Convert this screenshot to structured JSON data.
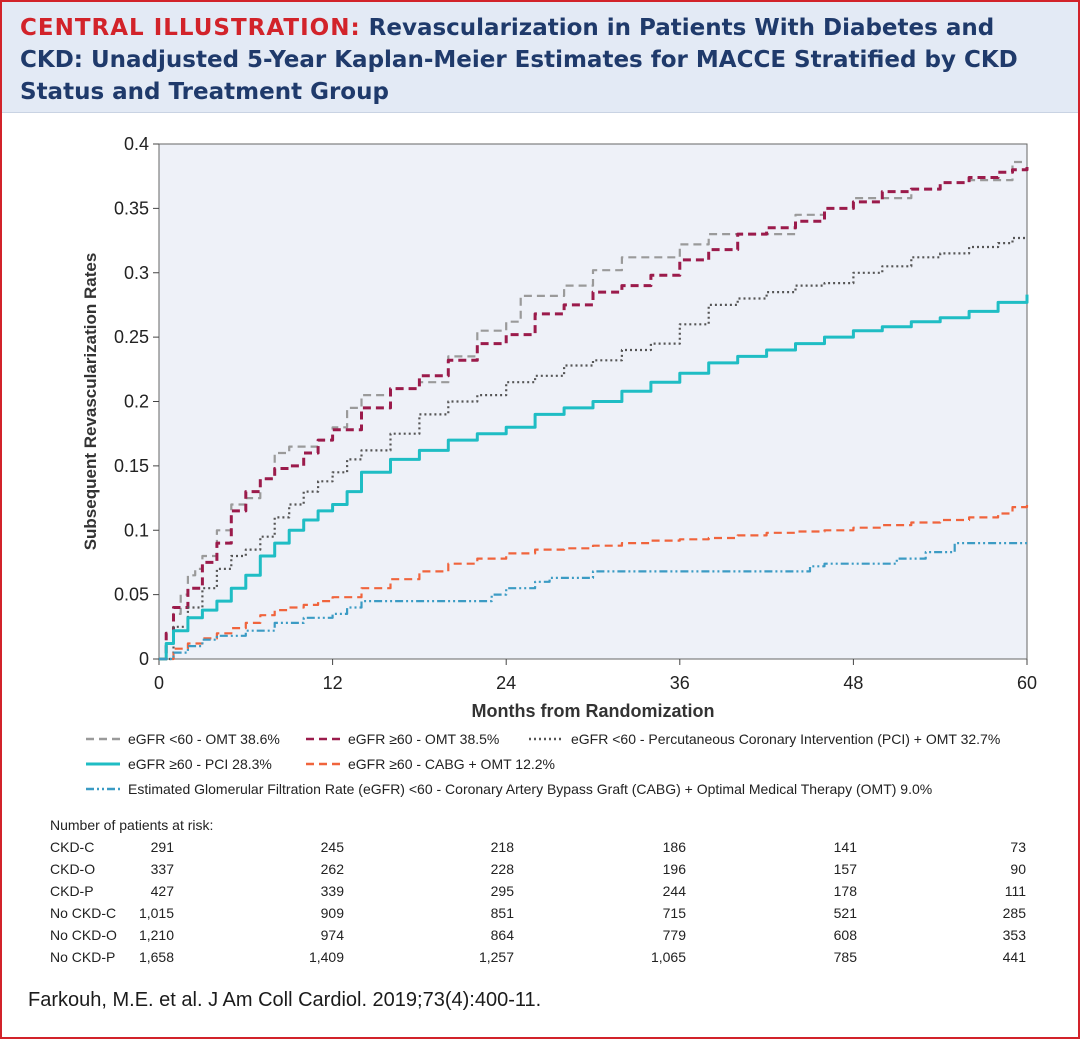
{
  "header": {
    "lead": "CENTRAL ILLUSTRATION:",
    "title": "Revascularization in Patients With Diabetes and CKD: Unadjusted 5-Year Kaplan-Meier Estimates for MACCE Stratified by CKD Status and Treatment Group"
  },
  "chart_data": {
    "type": "line",
    "xlabel": "Months from Randomization",
    "ylabel": "Subsequent Revascularization Rates",
    "xlim": [
      0,
      60
    ],
    "ylim": [
      0,
      0.4
    ],
    "xticks": [
      "0",
      "12",
      "24",
      "36",
      "48",
      "60"
    ],
    "yticks": [
      "0",
      "0.05",
      "0.1",
      "0.15",
      "0.2",
      "0.25",
      "0.3",
      "0.35",
      "0.4"
    ],
    "plot_background": "#eef1f8",
    "grid": false,
    "legend_position": "below",
    "series": [
      {
        "name": "eGFR <60 - OMT 38.6%",
        "color": "#9a9a9a",
        "dash": "dashed",
        "x": [
          0,
          0.5,
          1,
          1.5,
          2,
          2.5,
          3,
          4,
          5,
          6,
          7,
          8,
          9,
          10,
          11,
          12,
          13,
          14,
          16,
          18,
          20,
          22,
          24,
          25,
          26,
          28,
          30,
          32,
          34,
          36,
          38,
          40,
          42,
          44,
          46,
          48,
          50,
          52,
          54,
          56,
          58,
          59,
          60
        ],
        "y": [
          0,
          0.02,
          0.035,
          0.05,
          0.065,
          0.07,
          0.08,
          0.1,
          0.12,
          0.125,
          0.14,
          0.16,
          0.165,
          0.165,
          0.17,
          0.18,
          0.195,
          0.205,
          0.21,
          0.215,
          0.235,
          0.255,
          0.262,
          0.282,
          0.282,
          0.29,
          0.302,
          0.312,
          0.312,
          0.322,
          0.33,
          0.33,
          0.33,
          0.345,
          0.35,
          0.358,
          0.358,
          0.365,
          0.37,
          0.372,
          0.372,
          0.386,
          0.386
        ]
      },
      {
        "name": "eGFR ≥60 - OMT 38.5%",
        "color": "#9b1b4b",
        "dash": "dashed",
        "x": [
          0,
          0.5,
          1,
          2,
          3,
          4,
          5,
          6,
          7,
          8,
          9,
          10,
          11,
          12,
          14,
          16,
          18,
          20,
          22,
          24,
          26,
          28,
          30,
          32,
          34,
          36,
          38,
          40,
          42,
          44,
          46,
          48,
          50,
          52,
          54,
          56,
          58,
          59,
          60
        ],
        "y": [
          0,
          0.02,
          0.04,
          0.055,
          0.075,
          0.09,
          0.115,
          0.13,
          0.14,
          0.148,
          0.15,
          0.16,
          0.17,
          0.178,
          0.195,
          0.21,
          0.22,
          0.232,
          0.245,
          0.252,
          0.268,
          0.275,
          0.285,
          0.29,
          0.298,
          0.31,
          0.318,
          0.33,
          0.335,
          0.34,
          0.35,
          0.355,
          0.363,
          0.365,
          0.37,
          0.374,
          0.378,
          0.38,
          0.385
        ]
      },
      {
        "name": "eGFR <60 - Percutaneous Coronary Intervention (PCI) + OMT 32.7%",
        "color": "#555555",
        "dash": "dotted",
        "x": [
          0,
          1,
          2,
          3,
          4,
          5,
          6,
          7,
          8,
          9,
          10,
          11,
          12,
          13,
          14,
          16,
          18,
          20,
          22,
          24,
          26,
          28,
          30,
          32,
          34,
          36,
          38,
          40,
          42,
          44,
          46,
          48,
          50,
          52,
          54,
          56,
          58,
          59,
          60
        ],
        "y": [
          0,
          0.025,
          0.04,
          0.055,
          0.07,
          0.08,
          0.085,
          0.095,
          0.11,
          0.12,
          0.13,
          0.138,
          0.145,
          0.155,
          0.162,
          0.175,
          0.19,
          0.2,
          0.205,
          0.215,
          0.22,
          0.228,
          0.232,
          0.24,
          0.245,
          0.26,
          0.275,
          0.28,
          0.285,
          0.29,
          0.292,
          0.3,
          0.305,
          0.312,
          0.315,
          0.32,
          0.323,
          0.327,
          0.327
        ]
      },
      {
        "name": "eGFR ≥60 - PCI 28.3%",
        "color": "#1fbdc4",
        "dash": "solid",
        "x": [
          0,
          0.5,
          1,
          2,
          3,
          4,
          5,
          6,
          7,
          8,
          9,
          10,
          11,
          12,
          13,
          14,
          16,
          18,
          20,
          22,
          24,
          26,
          28,
          30,
          32,
          34,
          36,
          38,
          40,
          42,
          44,
          46,
          48,
          50,
          52,
          54,
          56,
          58,
          60
        ],
        "y": [
          0,
          0.012,
          0.022,
          0.032,
          0.038,
          0.045,
          0.055,
          0.065,
          0.08,
          0.09,
          0.1,
          0.108,
          0.115,
          0.12,
          0.13,
          0.145,
          0.155,
          0.162,
          0.17,
          0.175,
          0.18,
          0.19,
          0.195,
          0.2,
          0.208,
          0.215,
          0.222,
          0.23,
          0.235,
          0.24,
          0.245,
          0.25,
          0.255,
          0.258,
          0.262,
          0.265,
          0.27,
          0.277,
          0.283
        ]
      },
      {
        "name": "eGFR ≥60 - CABG + OMT 12.2%",
        "color": "#f0643c",
        "dash": "dashed",
        "x": [
          0,
          1,
          2,
          3,
          4,
          5,
          6,
          7,
          8,
          9,
          10,
          11,
          12,
          14,
          16,
          18,
          20,
          22,
          24,
          26,
          28,
          30,
          32,
          34,
          36,
          38,
          40,
          42,
          44,
          46,
          48,
          50,
          52,
          54,
          56,
          58,
          59,
          60
        ],
        "y": [
          0,
          0.008,
          0.012,
          0.016,
          0.02,
          0.024,
          0.028,
          0.034,
          0.038,
          0.04,
          0.042,
          0.045,
          0.048,
          0.055,
          0.062,
          0.068,
          0.074,
          0.078,
          0.082,
          0.085,
          0.086,
          0.088,
          0.09,
          0.092,
          0.093,
          0.094,
          0.096,
          0.098,
          0.099,
          0.1,
          0.102,
          0.104,
          0.106,
          0.108,
          0.11,
          0.113,
          0.118,
          0.122
        ]
      },
      {
        "name": "Estimated Glomerular Filtration Rate (eGFR) <60 - Coronary Artery Bypass Graft (CABG) + Optimal Medical Therapy (OMT) 9.0%",
        "color": "#3b9bc4",
        "dash": "dashdotdot",
        "x": [
          0,
          1,
          2,
          3,
          4,
          6,
          8,
          10,
          12,
          13,
          14,
          16,
          18,
          20,
          22,
          23,
          24,
          26,
          27,
          28,
          30,
          32,
          34,
          36,
          38,
          40,
          42,
          44,
          45,
          46,
          48,
          49,
          50,
          51,
          52,
          53,
          54,
          55,
          56,
          58,
          60
        ],
        "y": [
          0,
          0.005,
          0.01,
          0.015,
          0.018,
          0.022,
          0.028,
          0.032,
          0.035,
          0.04,
          0.045,
          0.045,
          0.045,
          0.045,
          0.045,
          0.05,
          0.055,
          0.06,
          0.063,
          0.063,
          0.068,
          0.068,
          0.068,
          0.068,
          0.068,
          0.068,
          0.068,
          0.068,
          0.072,
          0.074,
          0.074,
          0.074,
          0.074,
          0.078,
          0.078,
          0.083,
          0.083,
          0.09,
          0.09,
          0.09,
          0.09
        ]
      }
    ]
  },
  "legend": {
    "row1": [
      {
        "label": "eGFR <60 - OMT 38.6%",
        "color": "#9a9a9a",
        "dash": "dashed"
      },
      {
        "label": "eGFR ≥60 - OMT 38.5%",
        "color": "#9b1b4b",
        "dash": "dashed"
      },
      {
        "label": "eGFR <60 - Percutaneous Coronary Intervention (PCI) + OMT 32.7%",
        "color": "#555555",
        "dash": "dotted"
      }
    ],
    "row2": [
      {
        "label": "eGFR ≥60 - PCI 28.3%",
        "color": "#1fbdc4",
        "dash": "solid"
      },
      {
        "label": "eGFR ≥60 - CABG + OMT 12.2%",
        "color": "#f0643c",
        "dash": "dashed"
      }
    ],
    "row3": [
      {
        "label": "Estimated Glomerular Filtration Rate (eGFR) <60 - Coronary Artery Bypass Graft (CABG) + Optimal Medical Therapy (OMT) 9.0%",
        "color": "#3b9bc4",
        "dash": "dashdotdot"
      }
    ]
  },
  "risk_table": {
    "title": "Number of patients at risk:",
    "rows": [
      {
        "label": "CKD-C",
        "values": [
          "291",
          "245",
          "218",
          "186",
          "141",
          "73"
        ]
      },
      {
        "label": "CKD-O",
        "values": [
          "337",
          "262",
          "228",
          "196",
          "157",
          "90"
        ]
      },
      {
        "label": "CKD-P",
        "values": [
          "427",
          "339",
          "295",
          "244",
          "178",
          "111"
        ]
      },
      {
        "label": "No CKD-C",
        "values": [
          "1,015",
          "909",
          "851",
          "715",
          "521",
          "285"
        ]
      },
      {
        "label": "No CKD-O",
        "values": [
          "1,210",
          "974",
          "864",
          "779",
          "608",
          "353"
        ]
      },
      {
        "label": "No CKD-P",
        "values": [
          "1,658",
          "1,409",
          "1,257",
          "1,065",
          "785",
          "441"
        ]
      }
    ]
  },
  "footer": {
    "citation": "Farkouh, M.E. et al. J Am Coll Cardiol. 2019;73(4):400-11."
  }
}
